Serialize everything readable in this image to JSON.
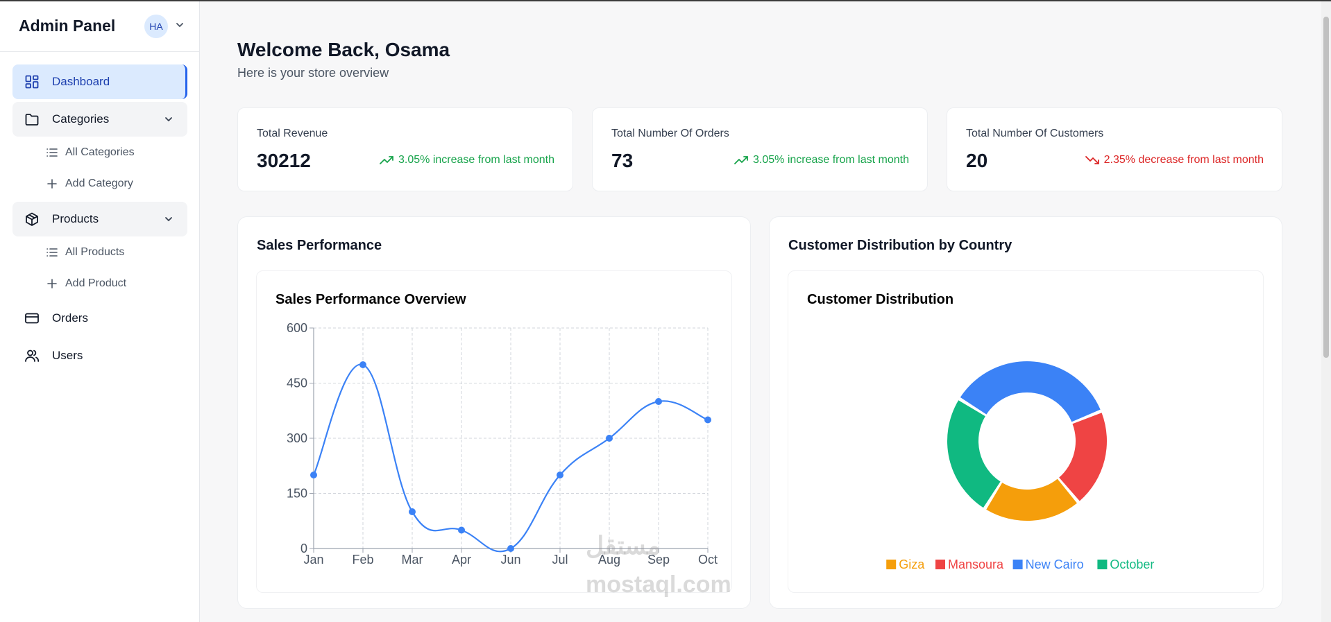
{
  "sidebar": {
    "brand": "Admin Panel",
    "avatar_initials": "HA",
    "nav": {
      "dashboard": "Dashboard",
      "categories": "Categories",
      "all_categories": "All Categories",
      "add_category": "Add Category",
      "products": "Products",
      "all_products": "All Products",
      "add_product": "Add Product",
      "orders": "Orders",
      "users": "Users"
    }
  },
  "header": {
    "title": "Welcome Back, Osama",
    "subtitle": "Here is your store overview"
  },
  "stats": [
    {
      "title": "Total Revenue",
      "value": "30212",
      "trend": "3.05% increase from last month",
      "direction": "up"
    },
    {
      "title": "Total Number Of Orders",
      "value": "73",
      "trend": "3.05% increase from last month",
      "direction": "up"
    },
    {
      "title": "Total Number Of Customers",
      "value": "20",
      "trend": "2.35% decrease from last month",
      "direction": "down"
    }
  ],
  "sales_card": {
    "title": "Sales Performance",
    "chart_title": "Sales Performance Overview"
  },
  "customer_card": {
    "title": "Customer Distribution by Country",
    "chart_title": "Customer Distribution"
  },
  "watermark": {
    "arabic": "مستقل",
    "latin": "mostaql.com"
  },
  "colors": {
    "accent": "#3b82f6",
    "up": "#16a34a",
    "down": "#dc2626"
  },
  "chart_data": [
    {
      "type": "line",
      "title": "Sales Performance Overview",
      "categories": [
        "Jan",
        "Feb",
        "Mar",
        "Apr",
        "Jun",
        "Jul",
        "Aug",
        "Sep",
        "Oct"
      ],
      "series": [
        {
          "values": [
            200,
            500,
            100,
            50,
            0,
            200,
            300,
            400,
            350
          ],
          "color": "#3b82f6"
        }
      ],
      "yticks": [
        0,
        150,
        300,
        450,
        600
      ],
      "ylim": [
        0,
        600
      ],
      "grid": true,
      "smooth": true
    },
    {
      "type": "pie",
      "donut": true,
      "title": "Customer Distribution",
      "labels": [
        "New Cairo",
        "Mansoura",
        "Giza",
        "October"
      ],
      "values": [
        7,
        4,
        4,
        5
      ],
      "colors": [
        "#3b82f6",
        "#ef4444",
        "#f59e0b",
        "#10b981"
      ],
      "legend": [
        {
          "label": "Giza",
          "color": "#f59e0b"
        },
        {
          "label": "Mansoura",
          "color": "#ef4444"
        },
        {
          "label": "New Cairo",
          "color": "#3b82f6"
        },
        {
          "label": "October",
          "color": "#10b981"
        }
      ],
      "legend_position": "bottom"
    }
  ]
}
